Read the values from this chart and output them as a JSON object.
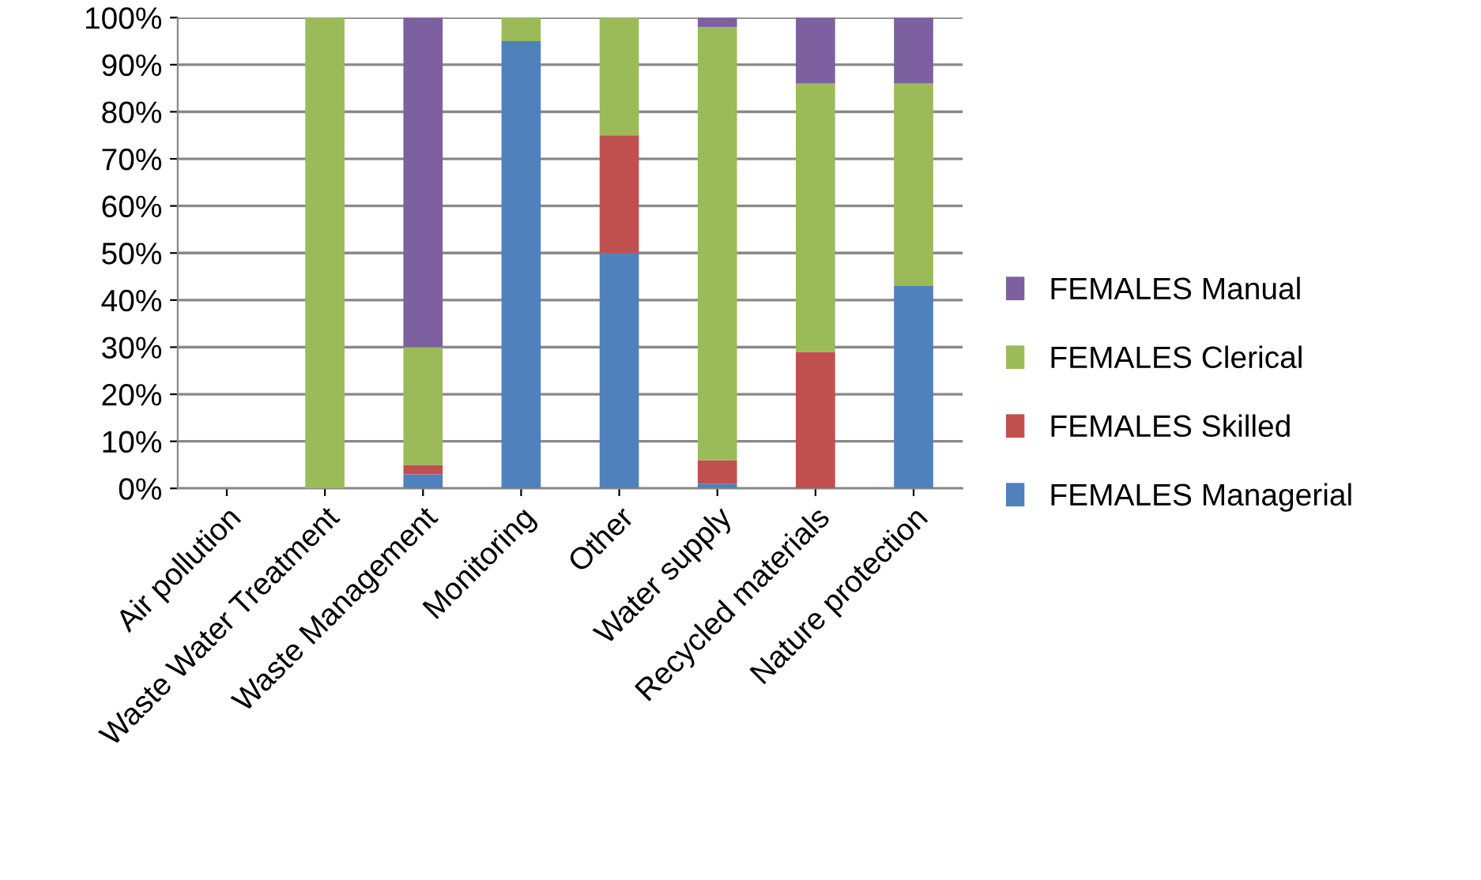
{
  "chart_data": {
    "type": "bar",
    "stacked": true,
    "categories": [
      "Air pollution",
      "Waste Water Treatment",
      "Waste Management",
      "Monitoring",
      "Other",
      "Water supply",
      "Recycled materials",
      "Nature protection"
    ],
    "series": [
      {
        "name": "FEMALES Managerial",
        "color": "#4f81bd",
        "values": [
          0,
          0,
          3,
          95,
          50,
          1,
          0,
          43
        ]
      },
      {
        "name": "FEMALES Skilled",
        "color": "#c0504d",
        "values": [
          0,
          0,
          2,
          0,
          25,
          5,
          29,
          0
        ]
      },
      {
        "name": "FEMALES Clerical",
        "color": "#9bbb59",
        "values": [
          0,
          100,
          25,
          5,
          25,
          92,
          57,
          43
        ]
      },
      {
        "name": "FEMALES Manual",
        "color": "#7d60a0",
        "values": [
          0,
          0,
          70,
          0,
          0,
          2,
          14,
          14
        ]
      }
    ],
    "ylim": [
      0,
      100
    ],
    "yticks": [
      {
        "value": 0,
        "label": "0%"
      },
      {
        "value": 10,
        "label": "10%"
      },
      {
        "value": 20,
        "label": "20%"
      },
      {
        "value": 30,
        "label": "30%"
      },
      {
        "value": 40,
        "label": "40%"
      },
      {
        "value": 50,
        "label": "50%"
      },
      {
        "value": 60,
        "label": "60%"
      },
      {
        "value": 70,
        "label": "70%"
      },
      {
        "value": 80,
        "label": "80%"
      },
      {
        "value": 90,
        "label": "90%"
      },
      {
        "value": 100,
        "label": "100%"
      }
    ],
    "grid": "y",
    "legend": "right"
  }
}
